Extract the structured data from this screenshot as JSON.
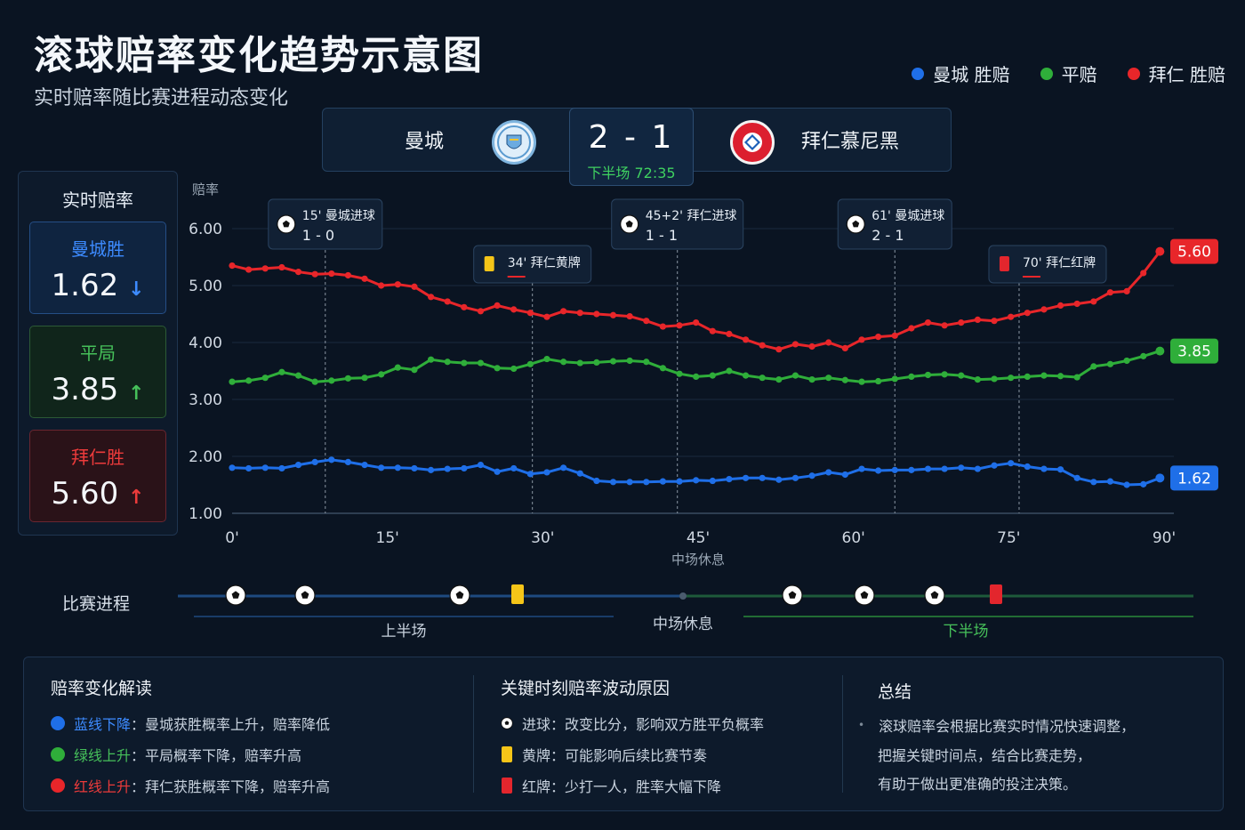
{
  "header": {
    "title": "滚球赔率变化趋势示意图",
    "subtitle": "实时赔率随比赛进程动态变化"
  },
  "legend": [
    {
      "label": "曼城 胜赔",
      "color": "#1f6fe8"
    },
    {
      "label": "平赔",
      "color": "#2fae3a"
    },
    {
      "label": "拜仁 胜赔",
      "color": "#e8262a"
    }
  ],
  "scoreboard": {
    "home_team": "曼城",
    "away_team": "拜仁慕尼黑",
    "home_crest": "MANCHESTER CITY",
    "away_crest": "FC BAYERN MÜNCHEN",
    "score": "2 - 1",
    "period": "下半场 72:35"
  },
  "odds_panel": {
    "title": "实时赔率",
    "cards": [
      {
        "label": "曼城胜",
        "value": "1.62",
        "arrow": "↓",
        "label_color": "#3d8bff",
        "arrow_color": "#3d8bff",
        "border": "#254e86",
        "bg": "#0f2440"
      },
      {
        "label": "平局",
        "value": "3.85",
        "arrow": "↑",
        "label_color": "#46c05a",
        "arrow_color": "#46c05a",
        "border": "#2c5a36",
        "bg": "#10251b"
      },
      {
        "label": "拜仁胜",
        "value": "5.60",
        "arrow": "↑",
        "label_color": "#ec3b3b",
        "arrow_color": "#ec3b3b",
        "border": "#6a2630",
        "bg": "#2a1218"
      }
    ]
  },
  "chart_data": {
    "type": "line",
    "ylabel": "赔率",
    "ylim": [
      1.0,
      6.0
    ],
    "yticks": [
      "1.00",
      "2.00",
      "3.00",
      "4.00",
      "5.00",
      "6.00"
    ],
    "xlim": [
      0,
      90
    ],
    "xticks": [
      "0'",
      "15'",
      "30'",
      "45'",
      "60'",
      "75'",
      "90'"
    ],
    "halftime_label": "中场休息",
    "x": [
      0,
      1.6,
      3.2,
      4.8,
      6.4,
      8,
      9.6,
      11.2,
      12.8,
      14.4,
      16,
      17.6,
      19.2,
      20.8,
      22.4,
      24,
      25.6,
      27.2,
      28.8,
      30.4,
      32,
      33.6,
      35.2,
      36.8,
      38.4,
      40,
      41.6,
      43.2,
      44.8,
      46.4,
      48,
      49.6,
      51.2,
      52.8,
      54.4,
      56,
      57.6,
      59.2,
      60.8,
      62.4,
      64,
      65.6,
      67.2,
      68.8,
      70.4,
      72,
      73.6,
      75.2,
      76.8,
      78.4,
      80,
      81.6,
      83.2,
      84.8,
      86.4,
      88,
      89.6
    ],
    "series": [
      {
        "name": "曼城 胜赔",
        "color": "#1f6fe8",
        "end_label": "1.62",
        "values": [
          1.8,
          1.79,
          1.8,
          1.79,
          1.85,
          1.9,
          1.94,
          1.9,
          1.85,
          1.8,
          1.8,
          1.79,
          1.76,
          1.78,
          1.79,
          1.85,
          1.73,
          1.79,
          1.69,
          1.72,
          1.8,
          1.7,
          1.57,
          1.55,
          1.55,
          1.55,
          1.56,
          1.56,
          1.58,
          1.57,
          1.6,
          1.62,
          1.62,
          1.59,
          1.62,
          1.66,
          1.72,
          1.68,
          1.78,
          1.75,
          1.76,
          1.76,
          1.78,
          1.78,
          1.8,
          1.78,
          1.84,
          1.88,
          1.82,
          1.78,
          1.77,
          1.62,
          1.55,
          1.56,
          1.5,
          1.51,
          1.62
        ]
      },
      {
        "name": "平赔",
        "color": "#2fae3a",
        "end_label": "3.85",
        "values": [
          3.31,
          3.33,
          3.38,
          3.48,
          3.42,
          3.31,
          3.33,
          3.37,
          3.38,
          3.44,
          3.56,
          3.52,
          3.7,
          3.66,
          3.64,
          3.64,
          3.55,
          3.54,
          3.62,
          3.71,
          3.66,
          3.64,
          3.65,
          3.67,
          3.68,
          3.66,
          3.55,
          3.45,
          3.4,
          3.42,
          3.5,
          3.42,
          3.38,
          3.35,
          3.42,
          3.35,
          3.38,
          3.34,
          3.31,
          3.32,
          3.36,
          3.4,
          3.43,
          3.44,
          3.42,
          3.35,
          3.36,
          3.38,
          3.4,
          3.42,
          3.41,
          3.39,
          3.58,
          3.62,
          3.68,
          3.76,
          3.85
        ]
      },
      {
        "name": "拜仁 胜赔",
        "color": "#e8262a",
        "end_label": "5.60",
        "values": [
          5.35,
          5.28,
          5.3,
          5.32,
          5.24,
          5.2,
          5.21,
          5.18,
          5.12,
          5.0,
          5.02,
          4.98,
          4.8,
          4.72,
          4.62,
          4.55,
          4.65,
          4.58,
          4.52,
          4.45,
          4.55,
          4.52,
          4.5,
          4.48,
          4.46,
          4.38,
          4.28,
          4.3,
          4.35,
          4.2,
          4.15,
          4.05,
          3.95,
          3.88,
          3.97,
          3.93,
          4.0,
          3.9,
          4.05,
          4.1,
          4.12,
          4.25,
          4.35,
          4.3,
          4.35,
          4.4,
          4.38,
          4.45,
          4.52,
          4.58,
          4.65,
          4.68,
          4.72,
          4.88,
          4.9,
          5.22,
          5.6
        ]
      }
    ],
    "events": [
      {
        "minute": 9,
        "icon": "ball",
        "title": "15' 曼城进球",
        "detail": "1 - 0"
      },
      {
        "minute": 29,
        "icon": "yellow",
        "title": "34' 拜仁黄牌",
        "detail": ""
      },
      {
        "minute": 43,
        "icon": "ball",
        "title": "45+2' 拜仁进球",
        "detail": "1 - 1"
      },
      {
        "minute": 64,
        "icon": "ball",
        "title": "61' 曼城进球",
        "detail": "2 - 1"
      },
      {
        "minute": 76,
        "icon": "red",
        "title": "70' 拜仁红牌",
        "detail": ""
      }
    ]
  },
  "match_progress": {
    "label": "比赛进程",
    "first_half": "上半场",
    "halftime": "中场休息",
    "second_half": "下半场",
    "markers": [
      {
        "icon": "ball"
      },
      {
        "icon": "ball"
      },
      {
        "icon": "ball"
      },
      {
        "icon": "yellow"
      },
      {
        "icon": "ball"
      },
      {
        "icon": "ball"
      },
      {
        "icon": "ball"
      },
      {
        "icon": "red"
      }
    ]
  },
  "bottom": {
    "interpretation": {
      "title": "赔率变化解读",
      "rows": [
        {
          "color": "#1f6fe8",
          "key": "蓝线下降",
          "text": "：曼城获胜概率上升，赔率降低"
        },
        {
          "color": "#2fae3a",
          "key": "绿线上升",
          "text": "：平局概率下降，赔率升高"
        },
        {
          "color": "#e8262a",
          "key": "红线上升",
          "text": "：拜仁获胜概率下降，赔率升高"
        }
      ]
    },
    "reasons": {
      "title": "关键时刻赔率波动原因",
      "rows": [
        {
          "icon": "ball",
          "text": "进球：改变比分，影响双方胜平负概率"
        },
        {
          "icon": "yellow",
          "text": "黄牌：可能影响后续比赛节奏"
        },
        {
          "icon": "red",
          "text": "红牌：少打一人，胜率大幅下降"
        }
      ]
    },
    "summary": {
      "title": "总结",
      "lines": [
        "滚球赔率会根据比赛实时情况快速调整，",
        "把握关键时间点，结合比赛走势，",
        "有助于做出更准确的投注决策。"
      ]
    }
  }
}
